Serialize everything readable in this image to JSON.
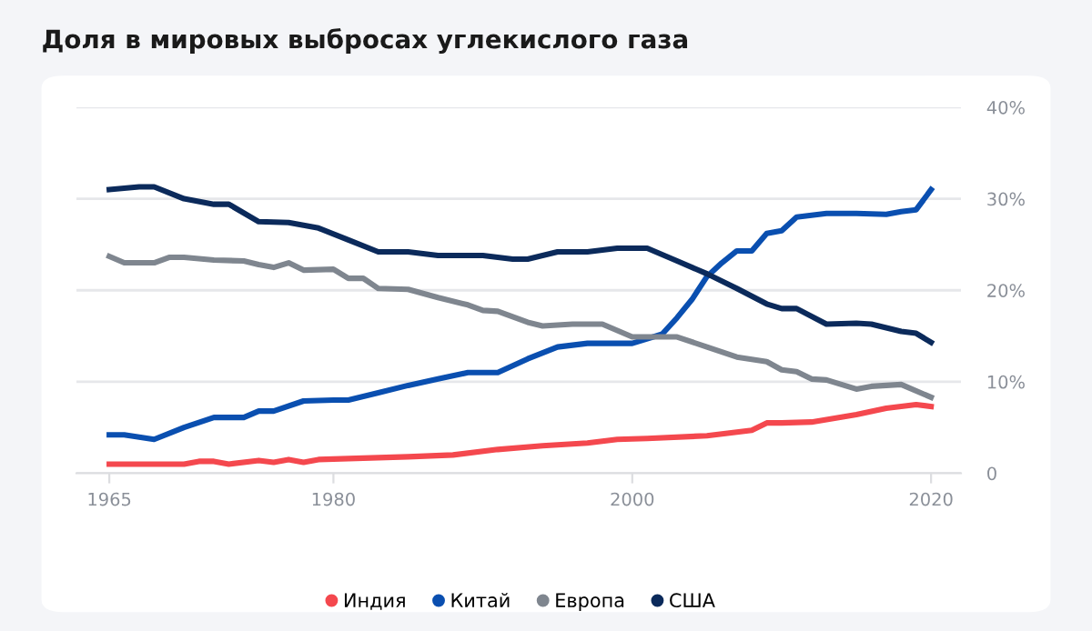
{
  "chart_data": {
    "type": "line",
    "title": "Доля в мировых выбросах углекислого газа",
    "xlim": [
      1962.8,
      2022
    ],
    "xticks": [
      1965,
      1980,
      2000,
      2020
    ],
    "ylim": [
      0,
      40
    ],
    "yticks": [
      {
        "value": 0,
        "label": "0"
      },
      {
        "value": 10,
        "label": "10%"
      },
      {
        "value": 20,
        "label": "20%"
      },
      {
        "value": 30,
        "label": "30%"
      },
      {
        "value": 40,
        "label": "40%"
      }
    ],
    "grid": "y",
    "legend": "bottom",
    "line_style": "solid",
    "series": [
      {
        "name": "Индия",
        "color": "#f4484e",
        "x": [
          1965,
          1970,
          1971,
          1972,
          1973,
          1975,
          1976,
          1977,
          1978,
          1979,
          1985,
          1988,
          1991,
          1994,
          1997,
          1999,
          2001,
          2005,
          2008,
          2009,
          2010,
          2012,
          2015,
          2017,
          2019,
          2020
        ],
        "values": [
          1.0,
          1.0,
          1.3,
          1.3,
          1.0,
          1.4,
          1.2,
          1.5,
          1.2,
          1.5,
          1.8,
          2.0,
          2.6,
          3.0,
          3.3,
          3.7,
          3.8,
          4.1,
          4.7,
          5.5,
          5.5,
          5.6,
          6.4,
          7.1,
          7.5,
          7.3
        ]
      },
      {
        "name": "Китай",
        "color": "#0a4fb0",
        "x": [
          1965,
          1966,
          1968,
          1970,
          1972,
          1974,
          1975,
          1976,
          1978,
          1980,
          1981,
          1983,
          1985,
          1987,
          1989,
          1991,
          1993,
          1995,
          1997,
          2000,
          2002,
          2003,
          2004,
          2005,
          2006,
          2007,
          2008,
          2009,
          2010,
          2011,
          2013,
          2015,
          2017,
          2018,
          2019,
          2020
        ],
        "values": [
          4.2,
          4.2,
          3.7,
          5.0,
          6.1,
          6.1,
          6.8,
          6.8,
          7.9,
          8.0,
          8.0,
          8.8,
          9.6,
          10.3,
          11.0,
          11.0,
          12.5,
          13.8,
          14.2,
          14.2,
          15.2,
          17.0,
          19.0,
          21.5,
          23.0,
          24.3,
          24.3,
          26.2,
          26.5,
          28.0,
          28.4,
          28.4,
          28.3,
          28.6,
          28.8,
          31.0
        ]
      },
      {
        "name": "Европа",
        "color": "#7f868f",
        "x": [
          1965,
          1966,
          1968,
          1969,
          1970,
          1972,
          1974,
          1975,
          1976,
          1977,
          1978,
          1980,
          1981,
          1982,
          1983,
          1985,
          1987,
          1989,
          1990,
          1991,
          1993,
          1994,
          1996,
          1998,
          2000,
          2003,
          2005,
          2007,
          2009,
          2010,
          2011,
          2012,
          2013,
          2015,
          2016,
          2018,
          2020
        ],
        "values": [
          23.7,
          23.0,
          23.0,
          23.6,
          23.6,
          23.3,
          23.2,
          22.8,
          22.5,
          23.0,
          22.2,
          22.3,
          21.3,
          21.3,
          20.2,
          20.1,
          19.2,
          18.4,
          17.8,
          17.7,
          16.5,
          16.1,
          16.3,
          16.3,
          14.9,
          14.9,
          13.8,
          12.7,
          12.2,
          11.3,
          11.1,
          10.3,
          10.2,
          9.2,
          9.5,
          9.7,
          8.3
        ]
      },
      {
        "name": "США",
        "color": "#0b2a5b",
        "x": [
          1965,
          1967,
          1968,
          1970,
          1972,
          1973,
          1975,
          1977,
          1979,
          1981,
          1983,
          1985,
          1987,
          1990,
          1992,
          1993,
          1995,
          1997,
          1999,
          2001,
          2003,
          2005,
          2007,
          2009,
          2010,
          2011,
          2013,
          2015,
          2016,
          2018,
          2019,
          2020
        ],
        "values": [
          31.0,
          31.3,
          31.3,
          30.0,
          29.4,
          29.4,
          27.5,
          27.4,
          26.8,
          25.5,
          24.2,
          24.2,
          23.8,
          23.8,
          23.4,
          23.4,
          24.2,
          24.2,
          24.6,
          24.6,
          23.2,
          21.8,
          20.2,
          18.5,
          18.0,
          18.0,
          16.3,
          16.4,
          16.3,
          15.5,
          15.3,
          14.3
        ]
      }
    ]
  }
}
